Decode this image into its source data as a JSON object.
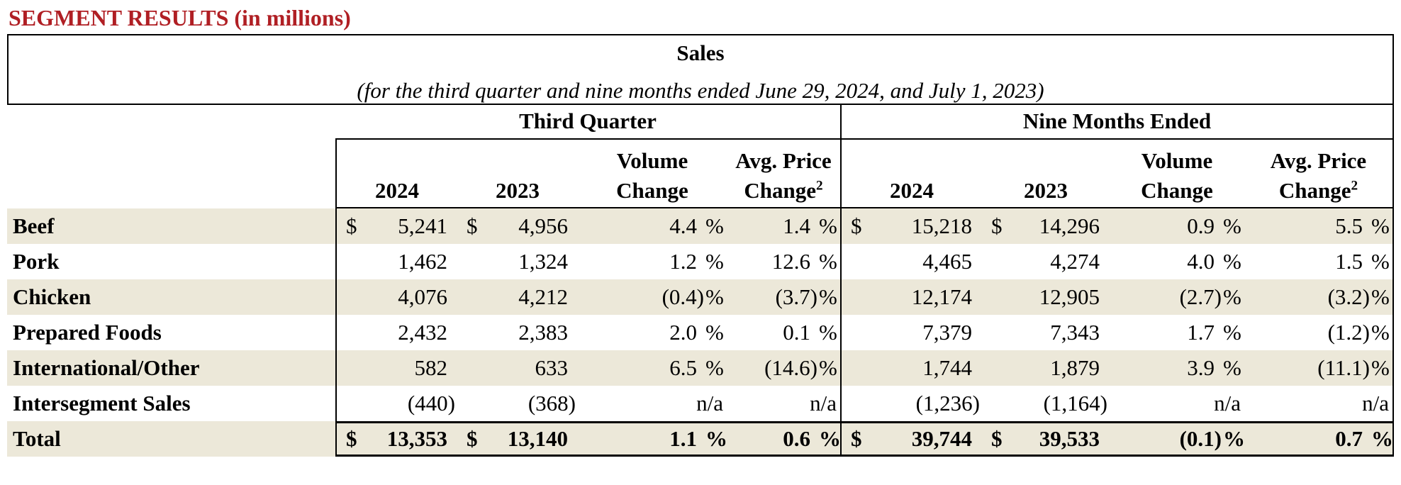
{
  "page_title": "SEGMENT RESULTS (in millions)",
  "colors": {
    "title_red": "#B01F24",
    "row_stripe": "#ECE8D9",
    "border_black": "#000000"
  },
  "table": {
    "title": "Sales",
    "subtitle": "(for the third quarter and nine months ended June 29, 2024, and July 1, 2023)",
    "sections": {
      "third_quarter": "Third Quarter",
      "nine_months": "Nine Months Ended"
    },
    "columns": {
      "y2024": "2024",
      "y2023": "2023",
      "volume_l1": "Volume",
      "volume_l2": "Change",
      "avg_l1": "Avg. Price",
      "avg_l2": "Change",
      "avg_sup": "2"
    },
    "dollar_sign": "$",
    "percent_sign": "%",
    "rows": [
      {
        "label": "Beef",
        "tq": {
          "cur2024": "$",
          "v2024": "5,241",
          "cur2023": "$",
          "v2023": "4,956",
          "vol": "4.4",
          "avg": "1.4"
        },
        "nm": {
          "cur2024": "$",
          "v2024": "15,218",
          "cur2023": "$",
          "v2023": "14,296",
          "vol": "0.9",
          "avg": "5.5"
        }
      },
      {
        "label": "Pork",
        "tq": {
          "cur2024": "",
          "v2024": "1,462",
          "cur2023": "",
          "v2023": "1,324",
          "vol": "1.2",
          "avg": "12.6"
        },
        "nm": {
          "cur2024": "",
          "v2024": "4,465",
          "cur2023": "",
          "v2023": "4,274",
          "vol": "4.0",
          "avg": "1.5"
        }
      },
      {
        "label": "Chicken",
        "tq": {
          "cur2024": "",
          "v2024": "4,076",
          "cur2023": "",
          "v2023": "4,212",
          "vol": "(0.4)",
          "avg": "(3.7)"
        },
        "nm": {
          "cur2024": "",
          "v2024": "12,174",
          "cur2023": "",
          "v2023": "12,905",
          "vol": "(2.7)",
          "avg": "(3.2)"
        }
      },
      {
        "label": "Prepared Foods",
        "tq": {
          "cur2024": "",
          "v2024": "2,432",
          "cur2023": "",
          "v2023": "2,383",
          "vol": "2.0",
          "avg": "0.1"
        },
        "nm": {
          "cur2024": "",
          "v2024": "7,379",
          "cur2023": "",
          "v2023": "7,343",
          "vol": "1.7",
          "avg": "(1.2)"
        }
      },
      {
        "label": "International/Other",
        "tq": {
          "cur2024": "",
          "v2024": "582",
          "cur2023": "",
          "v2023": "633",
          "vol": "6.5",
          "avg": "(14.6)"
        },
        "nm": {
          "cur2024": "",
          "v2024": "1,744",
          "cur2023": "",
          "v2023": "1,879",
          "vol": "3.9",
          "avg": "(11.1)"
        }
      },
      {
        "label": "Intersegment Sales",
        "tq": {
          "cur2024": "",
          "v2024": "(440)",
          "cur2023": "",
          "v2023": "(368)",
          "vol": "n/a",
          "avg": "n/a"
        },
        "nm": {
          "cur2024": "",
          "v2024": "(1,236)",
          "cur2023": "",
          "v2023": "(1,164)",
          "vol": "n/a",
          "avg": "n/a"
        }
      },
      {
        "label": "Total",
        "tq": {
          "cur2024": "$",
          "v2024": "13,353",
          "cur2023": "$",
          "v2023": "13,140",
          "vol": "1.1",
          "avg": "0.6"
        },
        "nm": {
          "cur2024": "$",
          "v2024": "39,744",
          "cur2023": "$",
          "v2023": "39,533",
          "vol": "(0.1)",
          "avg": "0.7"
        }
      }
    ]
  }
}
